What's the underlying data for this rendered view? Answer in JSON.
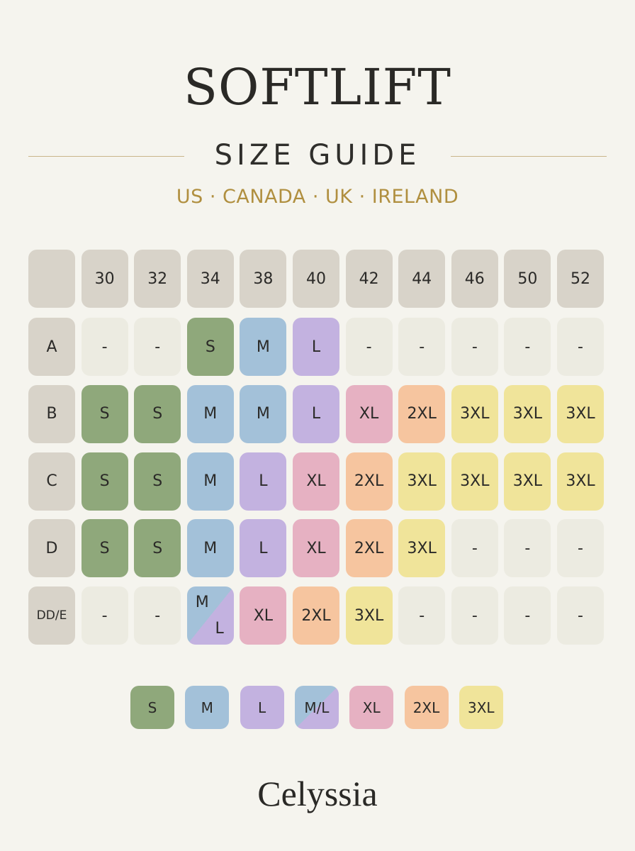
{
  "header": {
    "title": "SOFTLIFT",
    "subtitle": "SIZE GUIDE",
    "regions": "US · CANADA · UK · IRELAND"
  },
  "table": {
    "columns": [
      "30",
      "32",
      "34",
      "38",
      "40",
      "42",
      "44",
      "46",
      "50",
      "52"
    ],
    "rows": [
      {
        "label": "A",
        "cells": [
          "-",
          "-",
          "S",
          "M",
          "L",
          "-",
          "-",
          "-",
          "-",
          "-"
        ]
      },
      {
        "label": "B",
        "cells": [
          "S",
          "S",
          "M",
          "M",
          "L",
          "XL",
          "2XL",
          "3XL",
          "3XL",
          "3XL"
        ]
      },
      {
        "label": "C",
        "cells": [
          "S",
          "S",
          "M",
          "L",
          "XL",
          "2XL",
          "3XL",
          "3XL",
          "3XL",
          "3XL"
        ]
      },
      {
        "label": "D",
        "cells": [
          "S",
          "S",
          "M",
          "L",
          "XL",
          "2XL",
          "3XL",
          "-",
          "-",
          "-"
        ]
      },
      {
        "label": "DD/E",
        "cells": [
          "-",
          "-",
          [
            "M",
            "L"
          ],
          "XL",
          "2XL",
          "3XL",
          "-",
          "-",
          "-",
          "-"
        ]
      }
    ]
  },
  "legend": [
    {
      "label": "S",
      "color": "#8fa87b"
    },
    {
      "label": "M",
      "color": "#a3c1d9"
    },
    {
      "label": "L",
      "color": "#c3b2e0"
    },
    {
      "label": "M/L",
      "colors": [
        "#a3c1d9",
        "#c3b2e0"
      ]
    },
    {
      "label": "XL",
      "color": "#e6b1c2"
    },
    {
      "label": "2XL",
      "color": "#f6c59f"
    },
    {
      "label": "3XL",
      "color": "#f0e49a"
    }
  ],
  "brand": "Celyssia"
}
